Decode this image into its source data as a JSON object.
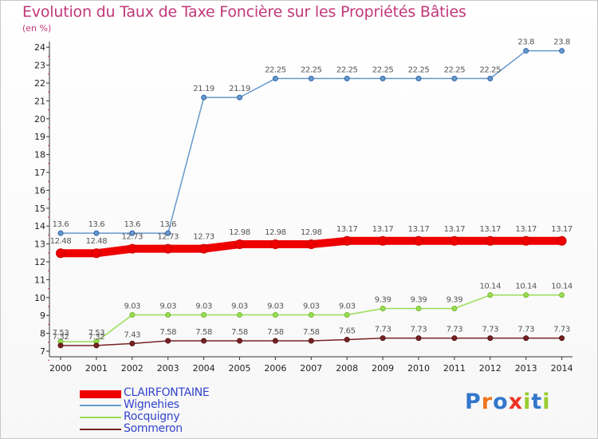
{
  "chart_data": {
    "type": "line",
    "title": "Evolution du Taux de Taxe Foncière sur les Propriétés Bâties",
    "subtitle": "(en %)",
    "xlabel": "",
    "ylabel": "",
    "ylim": [
      7,
      24.5
    ],
    "grid": false,
    "x": [
      "2000",
      "2001",
      "2002",
      "2003",
      "2004",
      "2005",
      "2006",
      "2007",
      "2008",
      "2009",
      "2010",
      "2011",
      "2012",
      "2013",
      "2014"
    ],
    "y_ticks": [
      "7",
      "8",
      "9",
      "10",
      "11",
      "12",
      "13",
      "14",
      "15",
      "16",
      "17",
      "18",
      "19",
      "20",
      "21",
      "22",
      "23",
      "24"
    ],
    "series": [
      {
        "name": "CLAIRFONTAINE",
        "color": "#ee0000",
        "width": 10,
        "values": [
          12.48,
          12.48,
          12.73,
          12.73,
          12.73,
          12.98,
          12.98,
          12.98,
          13.17,
          13.17,
          13.17,
          13.17,
          13.17,
          13.17,
          13.17
        ],
        "labels": [
          "12.48",
          "12.48",
          "12.73",
          "12.73",
          "12.73",
          "12.98",
          "12.98",
          "12.98",
          "13.17",
          "13.17",
          "13.17",
          "13.17",
          "13.17",
          "13.17",
          "13.17"
        ]
      },
      {
        "name": "Wignehies",
        "color": "#6699cc",
        "width": 1.5,
        "values": [
          13.6,
          13.6,
          13.6,
          13.6,
          21.19,
          21.19,
          22.25,
          22.25,
          22.25,
          22.25,
          22.25,
          22.25,
          22.25,
          23.8,
          23.8
        ],
        "labels": [
          "13.6",
          "13.6",
          "13.6",
          "13.6",
          "21.19",
          "21.19",
          "22.25",
          "22.25",
          "22.25",
          "22.25",
          "22.25",
          "22.25",
          "22.25",
          "23.8",
          "23.8"
        ]
      },
      {
        "name": "Rocquigny",
        "color": "#99dd55",
        "width": 1.5,
        "values": [
          7.53,
          7.53,
          9.03,
          9.03,
          9.03,
          9.03,
          9.03,
          9.03,
          9.03,
          9.39,
          9.39,
          9.39,
          10.14,
          10.14,
          10.14
        ],
        "labels": [
          "7.53",
          "7.53",
          "9.03",
          "9.03",
          "9.03",
          "9.03",
          "9.03",
          "9.03",
          "9.03",
          "9.39",
          "9.39",
          "9.39",
          "10.14",
          "10.14",
          "10.14"
        ]
      },
      {
        "name": "Sommeron",
        "color": "#772222",
        "width": 1.5,
        "values": [
          7.32,
          7.32,
          7.43,
          7.58,
          7.58,
          7.58,
          7.58,
          7.58,
          7.65,
          7.73,
          7.73,
          7.73,
          7.73,
          7.73,
          7.73
        ],
        "labels": [
          "7.32",
          "7.32",
          "7.43",
          "7.58",
          "7.58",
          "7.58",
          "7.58",
          "7.58",
          "7.65",
          "7.73",
          "7.73",
          "7.73",
          "7.73",
          "7.73",
          "7.73"
        ]
      }
    ],
    "legend": "bottom-left"
  },
  "logo": {
    "text": "Proxiti",
    "letters": [
      "P",
      "r",
      "o",
      "x",
      "i",
      "t",
      "i"
    ],
    "colors": [
      "#3377cc",
      "#ee7722",
      "#3377cc",
      "#ee3322",
      "#99cc33",
      "#3377cc",
      "#99cc33"
    ]
  }
}
